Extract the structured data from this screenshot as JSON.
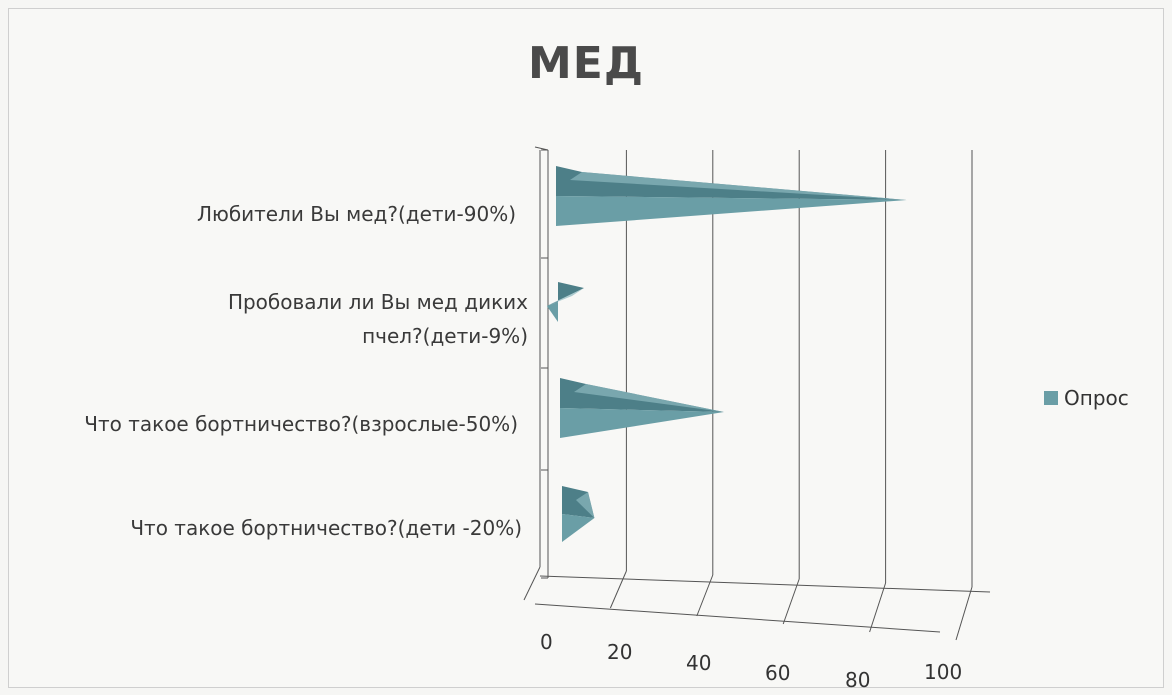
{
  "colors": {
    "bar_face": "#6a9ea6",
    "bar_dark": "#4d7f88",
    "bar_light": "#8bb8bf",
    "grid": "#555555",
    "text": "#333333"
  },
  "chart_data": {
    "type": "bar",
    "orientation": "horizontal",
    "style": "3d-pyramid",
    "title": "МЕД",
    "categories": [
      "Любители Вы мед?(дети-90%)",
      "Пробовали  ли Вы мед диких пчел?(дети-9%)",
      "Что такое бортничество?(взрослые-50%)",
      "Что такое бортничество?(дети  -20%)"
    ],
    "series": [
      {
        "name": "Опрос",
        "values": [
          90,
          9,
          50,
          20
        ]
      }
    ],
    "xlim": [
      0,
      100
    ],
    "x_ticks": [
      0,
      20,
      40,
      60,
      80,
      100
    ],
    "grid": true,
    "legend_position": "right"
  }
}
